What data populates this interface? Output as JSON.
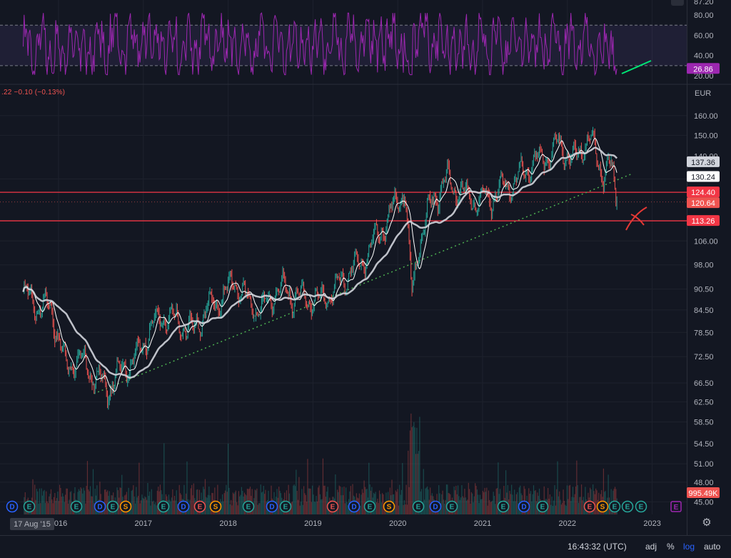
{
  "rsi_pane": {
    "ticks": [
      "80.00",
      "60.00",
      "40.00",
      "20.00"
    ],
    "top_tick_partial": "87.20",
    "current_value": "26.86",
    "color": "#9c27b0"
  },
  "legend": {
    "text": ".22  −0.10 (−0.13%)"
  },
  "price_axis": {
    "currency": "EUR",
    "ticks": [
      "160.00",
      "150.00",
      "140.00",
      "130.00",
      "124.40",
      "113.26",
      "106.00",
      "98.00",
      "90.50",
      "84.50",
      "78.50",
      "72.50",
      "66.50",
      "62.50",
      "58.50",
      "54.50",
      "51.00",
      "48.00",
      "45.00"
    ],
    "tags": {
      "ma200": "137.36",
      "last_price": "130.24",
      "resistance": "124.40",
      "close": "120.64",
      "support": "113.26",
      "volume": "995.49K"
    }
  },
  "time_axis": {
    "cursor_date": "17 Aug '15",
    "labels": [
      "2016",
      "2017",
      "2018",
      "2019",
      "2020",
      "2021",
      "2022",
      "2023"
    ]
  },
  "events": [
    {
      "label": "D"
    },
    {
      "label": "E"
    },
    {
      "label": "E"
    },
    {
      "label": "D"
    },
    {
      "label": "E"
    },
    {
      "label": "S"
    },
    {
      "label": "E"
    },
    {
      "label": "D"
    },
    {
      "label": "E"
    },
    {
      "label": "S"
    },
    {
      "label": "E"
    },
    {
      "label": "D"
    },
    {
      "label": "E"
    },
    {
      "label": "E"
    },
    {
      "label": "D"
    },
    {
      "label": "E"
    },
    {
      "label": "S"
    },
    {
      "label": "E"
    },
    {
      "label": "D"
    },
    {
      "label": "E"
    },
    {
      "label": "E"
    },
    {
      "label": "D"
    },
    {
      "label": "E"
    },
    {
      "label": "E"
    },
    {
      "label": "S"
    },
    {
      "label": "E"
    },
    {
      "label": "E"
    },
    {
      "label": "E"
    }
  ],
  "event_extra": "E",
  "bottom_bar": {
    "clock": "16:43:32 (UTC)",
    "adj": "adj",
    "percent": "%",
    "log": "log",
    "auto": "auto"
  },
  "colors": {
    "up": "#26a69a",
    "down": "#ef5350",
    "ma_fast": "#ffffff",
    "ma_slow": "#d1d4dc",
    "trend": "#4caf50",
    "level": "#f23645",
    "dividend": "#2962ff",
    "earnings": "#26a69a",
    "split": "#ff9800"
  },
  "chart_data": {
    "type": "line",
    "title": "",
    "y_unit": "EUR",
    "y_scale": "log",
    "ylim": [
      44,
      170
    ],
    "x": [
      "2015-08",
      "2015-10",
      "2015-12",
      "2016-02",
      "2016-04",
      "2016-06",
      "2016-08",
      "2016-10",
      "2016-12",
      "2017-02",
      "2017-04",
      "2017-06",
      "2017-08",
      "2017-10",
      "2017-12",
      "2018-02",
      "2018-04",
      "2018-06",
      "2018-08",
      "2018-10",
      "2018-12",
      "2019-02",
      "2019-04",
      "2019-06",
      "2019-08",
      "2019-10",
      "2019-12",
      "2020-02",
      "2020-03",
      "2020-04",
      "2020-06",
      "2020-08",
      "2020-10",
      "2020-12",
      "2021-02",
      "2021-04",
      "2021-06",
      "2021-08",
      "2021-10",
      "2021-12",
      "2022-02",
      "2022-04",
      "2022-05",
      "2022-06",
      "2022-07",
      "2022-08"
    ],
    "series": [
      {
        "values": [
          89,
          86,
          85,
          70,
          72,
          68,
          65,
          70,
          72,
          80,
          83,
          81,
          79,
          85,
          88,
          93,
          86,
          85,
          91,
          89,
          88,
          87,
          90,
          96,
          99,
          108,
          116,
          126,
          88,
          106,
          122,
          129,
          124,
          121,
          122,
          126,
          131,
          137,
          140,
          145,
          138,
          150,
          141,
          133,
          137,
          120.64
        ]
      }
    ],
    "price_levels": [
      124.4,
      113.26
    ],
    "rsi": {
      "ylim": [
        20,
        85
      ],
      "overbought": 70,
      "oversold": 30,
      "last": 26.86
    }
  }
}
